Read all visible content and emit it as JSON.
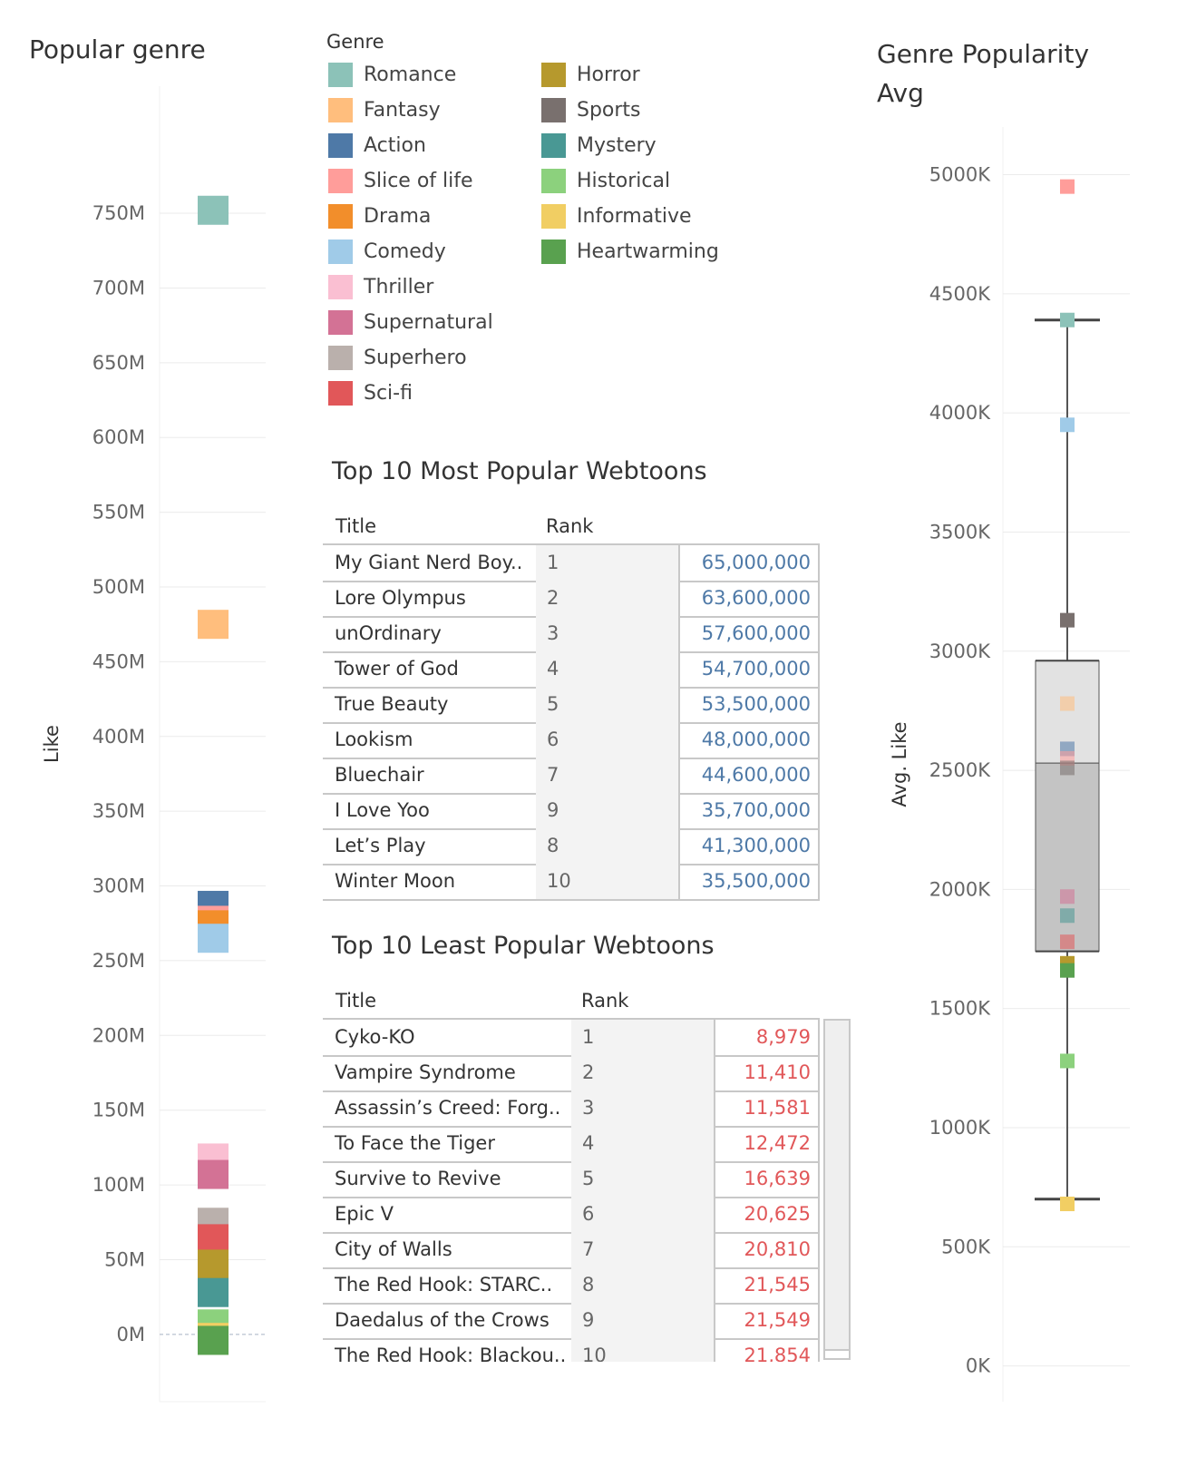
{
  "legend": {
    "title": "Genre",
    "items": [
      {
        "name": "Romance",
        "color": "#8cc2b8"
      },
      {
        "name": "Fantasy",
        "color": "#ffbe7d"
      },
      {
        "name": "Action",
        "color": "#4e79a7"
      },
      {
        "name": "Slice of life",
        "color": "#ff9d9a"
      },
      {
        "name": "Drama",
        "color": "#f28e2b"
      },
      {
        "name": "Comedy",
        "color": "#a0cbe8"
      },
      {
        "name": "Thriller",
        "color": "#fabfd2"
      },
      {
        "name": "Supernatural",
        "color": "#d37295"
      },
      {
        "name": "Superhero",
        "color": "#bab0ac"
      },
      {
        "name": "Sci-fi",
        "color": "#e15759"
      },
      {
        "name": "Horror",
        "color": "#b6992d"
      },
      {
        "name": "Sports",
        "color": "#79706e"
      },
      {
        "name": "Mystery",
        "color": "#499894"
      },
      {
        "name": "Historical",
        "color": "#8cd17d"
      },
      {
        "name": "Informative",
        "color": "#f1ce63"
      },
      {
        "name": "Heartwarming",
        "color": "#59a14f"
      }
    ]
  },
  "chart_data": [
    {
      "type": "bar",
      "title": "Popular genre",
      "ylabel": "Like",
      "xlabel": "",
      "ylim": [
        -45,
        835
      ],
      "yticks": [
        0,
        50,
        100,
        150,
        200,
        250,
        300,
        350,
        400,
        450,
        500,
        550,
        600,
        650,
        700,
        750
      ],
      "tick_labels": [
        "0M",
        "50M",
        "100M",
        "150M",
        "200M",
        "250M",
        "300M",
        "350M",
        "400M",
        "450M",
        "500M",
        "550M",
        "600M",
        "650M",
        "700M",
        "750M"
      ],
      "unit": "M",
      "series": [
        {
          "name": "Romance",
          "values": [
            752
          ]
        },
        {
          "name": "Fantasy",
          "values": [
            475
          ]
        },
        {
          "name": "Action",
          "values": [
            287
          ]
        },
        {
          "name": "Slice of life",
          "values": [
            277
          ]
        },
        {
          "name": "Drama",
          "values": [
            274
          ]
        },
        {
          "name": "Comedy",
          "values": [
            265
          ]
        },
        {
          "name": "Thriller",
          "values": [
            118
          ]
        },
        {
          "name": "Supernatural",
          "values": [
            107
          ]
        },
        {
          "name": "Superhero",
          "values": [
            75
          ]
        },
        {
          "name": "Sci-fi",
          "values": [
            64
          ]
        },
        {
          "name": "Horror",
          "values": [
            47
          ]
        },
        {
          "name": "Mystery",
          "values": [
            28
          ]
        },
        {
          "name": "Historical",
          "values": [
            7
          ]
        },
        {
          "name": "Informative",
          "values": [
            -2
          ]
        },
        {
          "name": "Heartwarming",
          "values": [
            -4
          ]
        }
      ]
    },
    {
      "type": "scatter",
      "title": "Genre Popularity Avg",
      "ylabel": "Avg. Like",
      "xlabel": "",
      "ylim": [
        -150,
        5200
      ],
      "yticks": [
        0,
        500,
        1000,
        1500,
        2000,
        2500,
        3000,
        3500,
        4000,
        4500,
        5000
      ],
      "tick_labels": [
        "0K",
        "500K",
        "1000K",
        "1500K",
        "2000K",
        "2500K",
        "3000K",
        "3500K",
        "4000K",
        "4500K",
        "5000K"
      ],
      "unit": "K",
      "points": [
        {
          "genre": "Slice of life",
          "y": 4950
        },
        {
          "genre": "Romance",
          "y": 4390
        },
        {
          "genre": "Comedy",
          "y": 3950
        },
        {
          "genre": "Sports",
          "y": 3130
        },
        {
          "genre": "Fantasy",
          "y": 2780
        },
        {
          "genre": "Action",
          "y": 2590
        },
        {
          "genre": "Slice of life",
          "y": 2550
        },
        {
          "genre": "Sports",
          "y": 2510
        },
        {
          "genre": "Supernatural",
          "y": 1970
        },
        {
          "genre": "Mystery",
          "y": 1890
        },
        {
          "genre": "Sci-fi",
          "y": 1780
        },
        {
          "genre": "Horror",
          "y": 1690
        },
        {
          "genre": "Heartwarming",
          "y": 1660
        },
        {
          "genre": "Historical",
          "y": 1280
        },
        {
          "genre": "Informative",
          "y": 680
        }
      ],
      "box": {
        "whisker_low": 700,
        "q1": 1740,
        "median": 2530,
        "q3": 2960,
        "whisker_high": 4390
      }
    }
  ],
  "top_table": {
    "title": "Top 10 Most Popular Webtoons",
    "col_title": "Title",
    "col_rank": "Rank",
    "color": "#4e79a7",
    "rows": [
      {
        "title": "My Giant Nerd Boy..",
        "rank": "1",
        "value": "65,000,000"
      },
      {
        "title": "Lore Olympus",
        "rank": "2",
        "value": "63,600,000"
      },
      {
        "title": "unOrdinary",
        "rank": "3",
        "value": "57,600,000"
      },
      {
        "title": "Tower of God",
        "rank": "4",
        "value": "54,700,000"
      },
      {
        "title": "True Beauty",
        "rank": "5",
        "value": "53,500,000"
      },
      {
        "title": "Lookism",
        "rank": "6",
        "value": "48,000,000"
      },
      {
        "title": "Bluechair",
        "rank": "7",
        "value": "44,600,000"
      },
      {
        "title": "I Love Yoo",
        "rank": "9",
        "value": "35,700,000"
      },
      {
        "title": "Let’s Play",
        "rank": "8",
        "value": "41,300,000"
      },
      {
        "title": "Winter Moon",
        "rank": "10",
        "value": "35,500,000"
      }
    ]
  },
  "bottom_table": {
    "title": "Top 10 Least Popular Webtoons",
    "col_title": "Title",
    "col_rank": "Rank",
    "color": "#e15759",
    "rows": [
      {
        "title": "Cyko-KO",
        "rank": "1",
        "value": "8,979"
      },
      {
        "title": "Vampire Syndrome",
        "rank": "2",
        "value": "11,410"
      },
      {
        "title": "Assassin’s Creed: Forg..",
        "rank": "3",
        "value": "11,581"
      },
      {
        "title": "To Face the Tiger",
        "rank": "4",
        "value": "12,472"
      },
      {
        "title": "Survive to Revive",
        "rank": "5",
        "value": "16,639"
      },
      {
        "title": "Epic V",
        "rank": "6",
        "value": "20,625"
      },
      {
        "title": "City of Walls",
        "rank": "7",
        "value": "20,810"
      },
      {
        "title": "The Red Hook: STARC..",
        "rank": "8",
        "value": "21,545"
      },
      {
        "title": "Daedalus of the Crows",
        "rank": "9",
        "value": "21,549"
      },
      {
        "title": "The Red Hook: Blackou..",
        "rank": "10",
        "value": "21,854"
      }
    ]
  }
}
